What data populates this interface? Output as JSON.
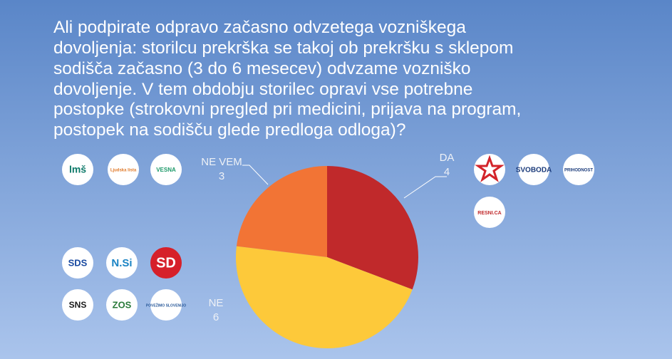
{
  "chart_data": {
    "type": "pie",
    "title": [
      "Ali podpirate odpravo začasno odvzetega vozniškega",
      "dovoljenja: storilcu prekrška se takoj ob prekršku s sklepom",
      "sodišča začasno (3 do 6 mesecev) odvzame vozniško",
      "dovoljenje. V tem obdobju storilec opravi vse potrebne",
      "postopke (strokovni pregled pri medicini, prijava na program,",
      "postopek na sodišču glede predloga odloga)?"
    ],
    "categories": [
      "DA",
      "NE",
      "NE VEM"
    ],
    "values": [
      4,
      6,
      3
    ],
    "colors": [
      "#c0292b",
      "#fdc93a",
      "#f27435"
    ]
  },
  "logos": {
    "da": [
      "SVOBODA",
      "PRIHODNOST",
      "RESNI.CA"
    ],
    "ne_vem": [
      "lmš",
      "Ljudska lista",
      "VESNA"
    ],
    "ne": [
      "SDS",
      "N.Si",
      "SD",
      "SNS",
      "ZOS",
      "POVEŽIMO SLOVENIJO"
    ]
  }
}
